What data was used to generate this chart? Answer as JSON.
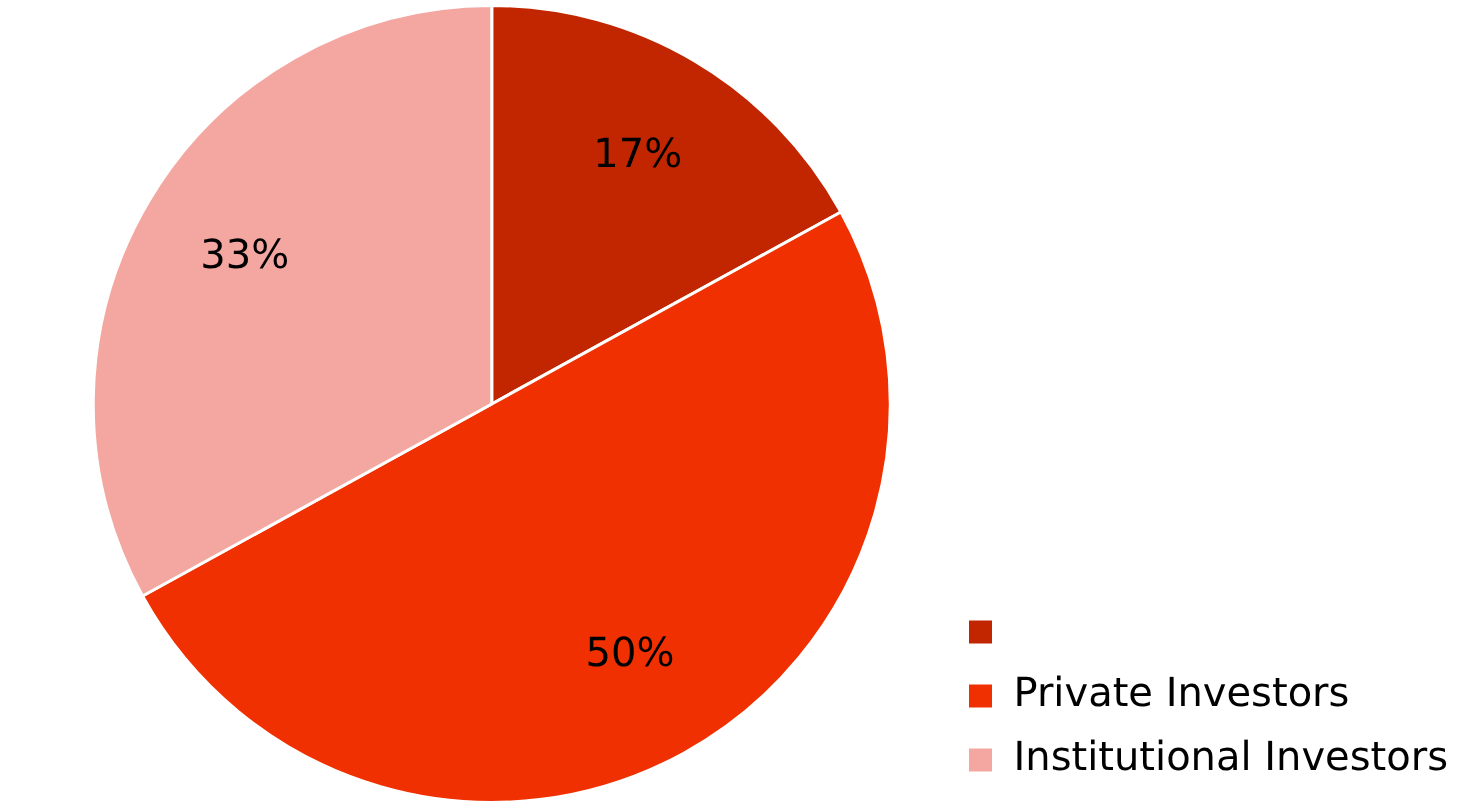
{
  "chart_data": {
    "type": "pie",
    "categories": [
      null,
      "Private Investors",
      "Institutional Investors"
    ],
    "values": [
      17,
      50,
      33
    ],
    "colors": [
      "#c22600",
      "#f03000",
      "#f4a6a0"
    ],
    "value_labels": [
      "17%",
      "50%",
      "33%"
    ],
    "legend": "bottom right"
  }
}
